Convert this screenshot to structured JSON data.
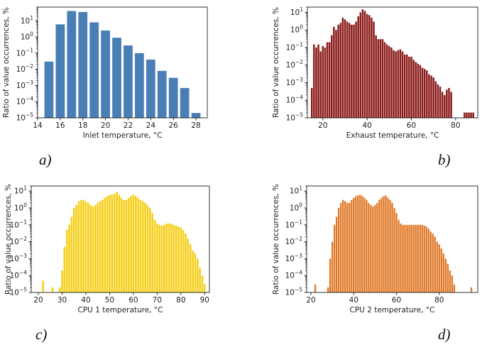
{
  "chart_data": [
    {
      "type": "bar",
      "panel_label": "a)",
      "xlabel": "Inlet temperature, °C",
      "ylabel": "Ratio of value occurrences, %",
      "yscale": "log",
      "ylim": [
        1e-05,
        70
      ],
      "xlim": [
        14,
        29
      ],
      "xticks": [
        14,
        16,
        18,
        20,
        22,
        24,
        26,
        28
      ],
      "yticks": [
        -5,
        -4,
        -3,
        -2,
        -1,
        0,
        1
      ],
      "color": "#4a7fb5",
      "bar_width": 0.8,
      "x": [
        15,
        16,
        17,
        18,
        19,
        20,
        21,
        22,
        23,
        24,
        25,
        26,
        27,
        28
      ],
      "values": [
        0.03,
        6,
        40,
        35,
        8,
        2.5,
        0.9,
        0.3,
        0.1,
        0.04,
        0.008,
        0.003,
        0.0007,
        2e-05
      ]
    },
    {
      "type": "bar",
      "panel_label": "b)",
      "xlabel": "Exhaust temperature, °C",
      "ylabel": "Ratio of value occurrences, %",
      "yscale": "log",
      "ylim": [
        1e-05,
        20
      ],
      "xlim": [
        13,
        90
      ],
      "xticks": [
        20,
        40,
        60,
        80
      ],
      "yticks": [
        -5,
        -4,
        -3,
        -2,
        -1,
        0,
        1
      ],
      "color": "#8b1a1a",
      "bar_width": 0.8,
      "x": [
        15,
        16,
        17,
        18,
        19,
        20,
        21,
        22,
        23,
        24,
        25,
        26,
        27,
        28,
        29,
        30,
        31,
        32,
        33,
        34,
        35,
        36,
        37,
        38,
        39,
        40,
        41,
        42,
        43,
        44,
        45,
        46,
        47,
        48,
        49,
        50,
        51,
        52,
        53,
        54,
        55,
        56,
        57,
        58,
        59,
        60,
        61,
        62,
        63,
        64,
        65,
        66,
        67,
        68,
        69,
        70,
        71,
        72,
        73,
        74,
        75,
        76,
        77,
        78,
        84,
        85,
        86,
        87,
        88
      ],
      "values": [
        0.0005,
        0.15,
        0.1,
        0.15,
        0.06,
        0.12,
        0.1,
        0.2,
        0.2,
        0.5,
        1.5,
        1,
        2,
        2.5,
        5,
        4,
        3,
        2.5,
        2,
        2,
        3,
        6,
        10,
        15,
        12,
        8,
        7,
        5,
        3,
        0.5,
        0.3,
        0.3,
        0.3,
        0.2,
        0.15,
        0.12,
        0.1,
        0.07,
        0.06,
        0.07,
        0.08,
        0.06,
        0.04,
        0.04,
        0.03,
        0.03,
        0.02,
        0.015,
        0.012,
        0.01,
        0.007,
        0.006,
        0.005,
        0.003,
        0.0025,
        0.002,
        0.0012,
        0.0008,
        0.0006,
        0.0003,
        0.0002,
        0.0004,
        0.0005,
        0.0003,
        2e-05,
        2e-05,
        2e-05,
        2e-05,
        2e-05
      ]
    },
    {
      "type": "bar",
      "panel_label": "c)",
      "xlabel": "CPU 1 temperature, °C",
      "ylabel": "Ratio of value occurrences, %",
      "yscale": "log",
      "ylim": [
        1e-05,
        20
      ],
      "xlim": [
        17,
        92
      ],
      "xticks": [
        20,
        30,
        40,
        50,
        60,
        70,
        80,
        90
      ],
      "yticks": [
        -5,
        -4,
        -3,
        -2,
        -1,
        0,
        1
      ],
      "color": "#f5d01e",
      "bar_width": 0.8,
      "x": [
        22,
        26,
        29,
        30,
        31,
        32,
        33,
        34,
        35,
        36,
        37,
        38,
        39,
        40,
        41,
        42,
        43,
        44,
        45,
        46,
        47,
        48,
        49,
        50,
        51,
        52,
        53,
        54,
        55,
        56,
        57,
        58,
        59,
        60,
        61,
        62,
        63,
        64,
        65,
        66,
        67,
        68,
        69,
        70,
        71,
        72,
        73,
        74,
        75,
        76,
        77,
        78,
        79,
        80,
        81,
        82,
        83,
        84,
        85,
        86,
        87,
        88,
        89,
        90
      ],
      "values": [
        5e-05,
        2e-05,
        2e-05,
        0.0002,
        0.005,
        0.05,
        0.1,
        0.3,
        1,
        1.5,
        2.5,
        3,
        3,
        2.5,
        2,
        1.5,
        1.2,
        1.5,
        2,
        2.5,
        3,
        4,
        5,
        6,
        6,
        7,
        9,
        6,
        4,
        3,
        3,
        4,
        5,
        6,
        5,
        4,
        3,
        2.5,
        2,
        1.5,
        1,
        0.5,
        0.2,
        0.12,
        0.1,
        0.09,
        0.1,
        0.12,
        0.12,
        0.12,
        0.1,
        0.09,
        0.08,
        0.07,
        0.05,
        0.03,
        0.015,
        0.007,
        0.003,
        0.002,
        0.001,
        0.0003,
        0.0001,
        3e-05
      ]
    },
    {
      "type": "bar",
      "panel_label": "d)",
      "xlabel": "CPU 2 temperature, °C",
      "ylabel": "Ratio of value occurrences, %",
      "yscale": "log",
      "ylim": [
        1e-05,
        20
      ],
      "xlim": [
        18,
        98
      ],
      "xticks": [
        20,
        40,
        60,
        80
      ],
      "yticks": [
        -5,
        -4,
        -3,
        -2,
        -1,
        0,
        1
      ],
      "color": "#e07a2a",
      "bar_width": 0.8,
      "x": [
        22,
        28,
        29,
        30,
        31,
        32,
        33,
        34,
        35,
        36,
        37,
        38,
        39,
        40,
        41,
        42,
        43,
        44,
        45,
        46,
        47,
        48,
        49,
        50,
        51,
        52,
        53,
        54,
        55,
        56,
        57,
        58,
        59,
        60,
        61,
        62,
        63,
        64,
        65,
        66,
        67,
        68,
        69,
        70,
        71,
        72,
        73,
        74,
        75,
        76,
        77,
        78,
        79,
        80,
        81,
        82,
        83,
        84,
        85,
        86,
        87,
        95
      ],
      "values": [
        3e-05,
        2e-05,
        0.001,
        0.01,
        0.1,
        0.3,
        1,
        2,
        3,
        2.5,
        2,
        2,
        3,
        4,
        5,
        5.5,
        6,
        5,
        4,
        3,
        2,
        1.5,
        1.2,
        1.5,
        2,
        3,
        4,
        5,
        5.5,
        4,
        3,
        2,
        1,
        0.5,
        0.2,
        0.12,
        0.1,
        0.1,
        0.1,
        0.1,
        0.1,
        0.1,
        0.1,
        0.1,
        0.1,
        0.1,
        0.09,
        0.08,
        0.06,
        0.04,
        0.03,
        0.02,
        0.01,
        0.007,
        0.004,
        0.002,
        0.001,
        0.0005,
        0.0002,
        0.0001,
        3e-05,
        2e-05
      ]
    }
  ]
}
